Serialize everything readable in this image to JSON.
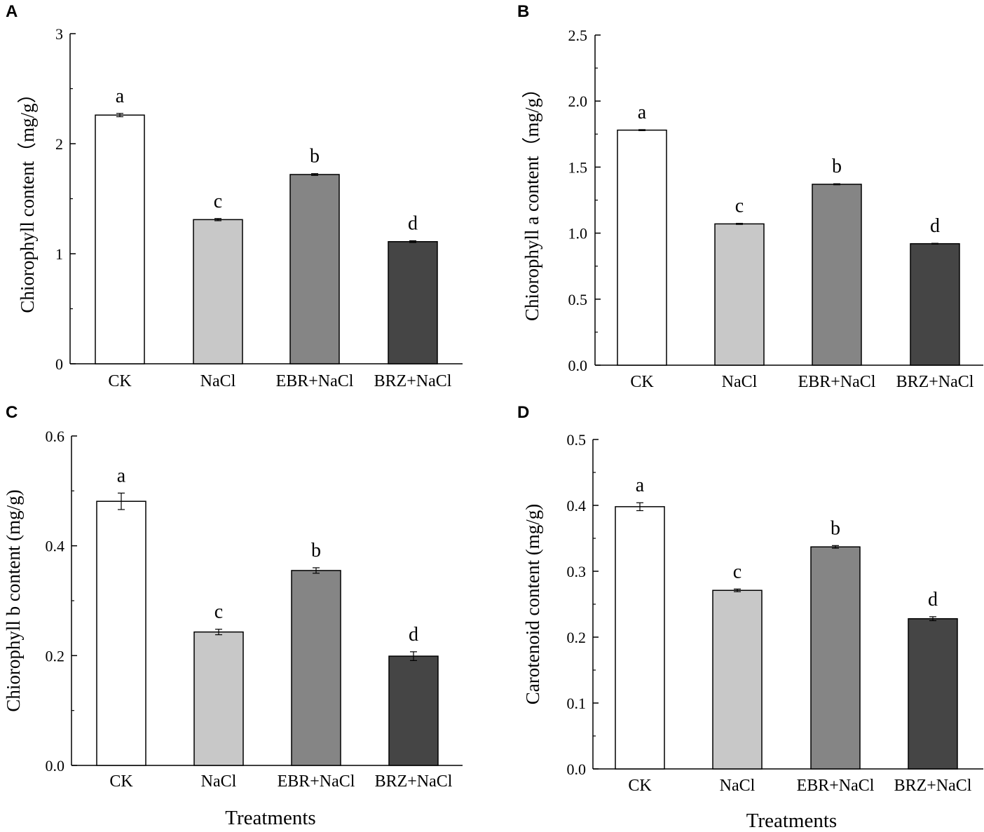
{
  "figure": {
    "xlabel_bottom": "Treatments"
  },
  "chart_data": [
    {
      "panel": "A",
      "type": "bar",
      "categories": [
        "CK",
        "NaCl",
        "EBR+NaCl",
        "BRZ+NaCl"
      ],
      "values": [
        2.26,
        1.31,
        1.72,
        1.11
      ],
      "errors": [
        0.015,
        0.01,
        0.008,
        0.008
      ],
      "significance": [
        "a",
        "c",
        "b",
        "d"
      ],
      "colors": [
        "#ffffff",
        "#c8c8c8",
        "#858585",
        "#454545"
      ],
      "ylabel": "Chiorophyll content（mg/g）",
      "xlabel": "",
      "ylim": [
        0,
        3
      ],
      "yticks": [
        0,
        1,
        2,
        3
      ],
      "ytick_labels": [
        "0",
        "1",
        "2",
        "3"
      ]
    },
    {
      "panel": "B",
      "type": "bar",
      "categories": [
        "CK",
        "NaCl",
        "EBR+NaCl",
        "BRZ+NaCl"
      ],
      "values": [
        1.78,
        1.07,
        1.37,
        0.92
      ],
      "errors": [
        0.004,
        0.004,
        0.004,
        0.003
      ],
      "significance": [
        "a",
        "c",
        "b",
        "d"
      ],
      "colors": [
        "#ffffff",
        "#c8c8c8",
        "#858585",
        "#454545"
      ],
      "ylabel": "Chiorophyll a content（mg/g）",
      "xlabel": "",
      "ylim": [
        0,
        2.5
      ],
      "yticks": [
        0,
        0.5,
        1,
        1.5,
        2,
        2.5
      ],
      "ytick_labels": [
        "0.0",
        "0.5",
        "1.0",
        "1.5",
        "2.0",
        "2.5"
      ]
    },
    {
      "panel": "C",
      "type": "bar",
      "categories": [
        "CK",
        "NaCl",
        "EBR+NaCl",
        "BRZ+NaCl"
      ],
      "values": [
        0.481,
        0.243,
        0.355,
        0.199
      ],
      "errors": [
        0.015,
        0.005,
        0.005,
        0.008
      ],
      "significance": [
        "a",
        "c",
        "b",
        "d"
      ],
      "colors": [
        "#ffffff",
        "#c8c8c8",
        "#858585",
        "#454545"
      ],
      "ylabel": "Chiorophyll b content (mg/g)",
      "xlabel": "Treatments",
      "ylim": [
        0,
        0.6
      ],
      "yticks": [
        0,
        0.2,
        0.4,
        0.6
      ],
      "ytick_labels": [
        "0.0",
        "0.2",
        "0.4",
        "0.6"
      ]
    },
    {
      "panel": "D",
      "type": "bar",
      "categories": [
        "CK",
        "NaCl",
        "EBR+NaCl",
        "BRZ+NaCl"
      ],
      "values": [
        0.398,
        0.271,
        0.337,
        0.228
      ],
      "errors": [
        0.006,
        0.002,
        0.002,
        0.003
      ],
      "significance": [
        "a",
        "c",
        "b",
        "d"
      ],
      "colors": [
        "#ffffff",
        "#c8c8c8",
        "#858585",
        "#454545"
      ],
      "ylabel": "Carotenoid content (mg/g)",
      "xlabel": "Treatments",
      "ylim": [
        0,
        0.5
      ],
      "yticks": [
        0,
        0.1,
        0.2,
        0.3,
        0.4,
        0.5
      ],
      "ytick_labels": [
        "0.0",
        "0.1",
        "0.2",
        "0.3",
        "0.4",
        "0.5"
      ]
    }
  ]
}
